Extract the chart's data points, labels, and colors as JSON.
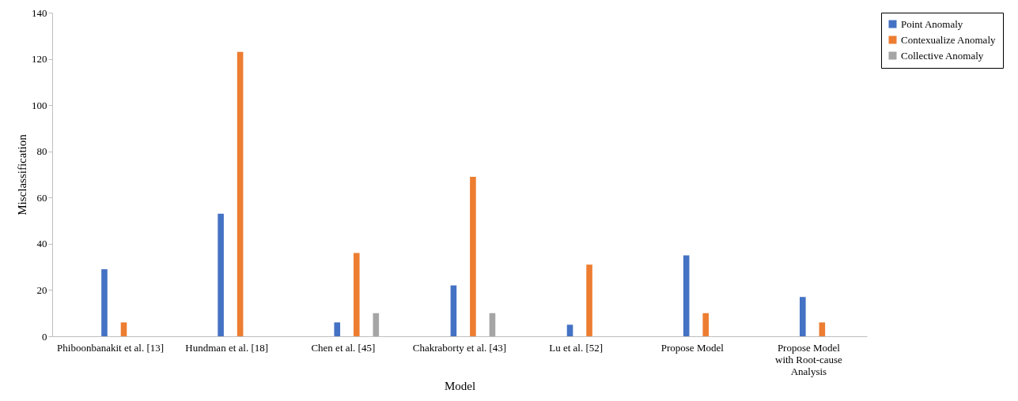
{
  "chart_data": {
    "type": "bar",
    "xlabel": "Model",
    "ylabel": "Misclassification",
    "categories": [
      "Phiboonbanakit et al. [13]",
      "Hundman et al. [18]",
      "Chen et al. [45]",
      "Chakraborty et al. [43]",
      "Lu et al. [52]",
      "Propose Model",
      "Propose Model with Root-cause Analysis"
    ],
    "series": [
      {
        "name": "Point Anomaly",
        "color": "#4472c4",
        "values": [
          29,
          53,
          6,
          22,
          5,
          35,
          17
        ]
      },
      {
        "name": "Contexualize Anomaly",
        "color": "#ed7d31",
        "values": [
          6,
          123,
          36,
          69,
          31,
          10,
          6
        ]
      },
      {
        "name": "Collective Anomaly",
        "color": "#a5a5a5",
        "values": [
          0,
          0,
          10,
          10,
          0,
          0,
          0
        ]
      }
    ],
    "ylim": [
      0,
      140
    ],
    "yticks": [
      0,
      20,
      40,
      60,
      80,
      100,
      120,
      140
    ],
    "grid": false,
    "legend": "right"
  }
}
